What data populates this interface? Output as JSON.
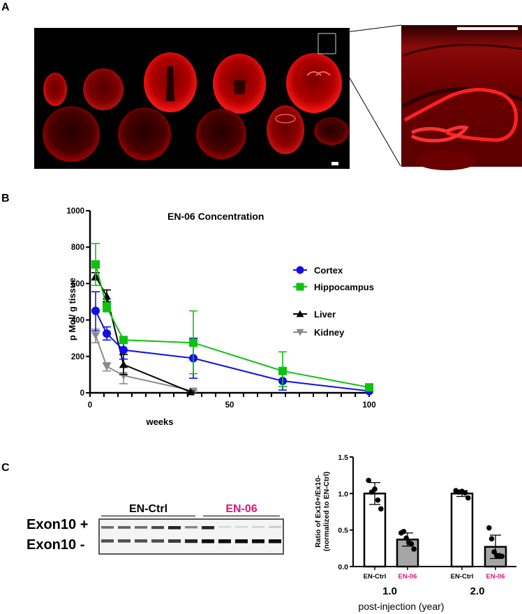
{
  "panels": {
    "a": {
      "label": "A"
    },
    "b": {
      "label": "B"
    },
    "c": {
      "label": "C"
    }
  },
  "colors": {
    "cortex": "#1010e8",
    "hippocampus": "#10c010",
    "liver": "#000000",
    "kidney": "#8a8a8a",
    "en06_accent": "#e0147a",
    "bar_en06_fill": "#a6a6a6",
    "fluorescence": "#ff1a1a"
  },
  "panel_a": {
    "description": "Fluorescent coronal brain sections (red) with magnified hippocampus inset",
    "sections_row1": 5,
    "sections_row2": 5,
    "scalebar_main": "scale-bar",
    "scalebar_inset": "scale-bar"
  },
  "panel_c_blot": {
    "group_ctrl": "EN-Ctrl",
    "group_en06": "EN-06",
    "band_top_label": "Exon10 +",
    "band_bottom_label": "Exon10 -",
    "lanes": 11,
    "ctrl_lanes": 6,
    "en06_lanes": 5
  },
  "chart_data": [
    {
      "type": "line",
      "title": "EN-06 Concentration",
      "xlabel": "weeks",
      "ylabel": "p Mol/ g tissue",
      "xlim": [
        0,
        100
      ],
      "ylim": [
        0,
        1000
      ],
      "xticks": [
        0,
        50,
        100
      ],
      "yticks": [
        0,
        200,
        400,
        600,
        800,
        1000
      ],
      "grid": false,
      "legend_position": "right",
      "series": [
        {
          "name": "Cortex",
          "marker": "circle",
          "color": "#1010e8",
          "x": [
            2,
            6,
            12,
            37,
            69,
            100
          ],
          "y": [
            450,
            325,
            235,
            190,
            65,
            10
          ],
          "err_low": [
            340,
            290,
            185,
            80,
            15,
            5
          ],
          "err_high": [
            555,
            362,
            285,
            300,
            110,
            15
          ]
        },
        {
          "name": "Hippocampus",
          "marker": "square",
          "color": "#10c010",
          "x": [
            2,
            6,
            12,
            37,
            69,
            100
          ],
          "y": [
            705,
            470,
            290,
            275,
            120,
            30
          ],
          "err_low": [
            590,
            445,
            285,
            105,
            35,
            25
          ],
          "err_high": [
            820,
            495,
            295,
            450,
            225,
            35
          ]
        },
        {
          "name": "Liver",
          "marker": "triangle-up",
          "color": "#000000",
          "x": [
            2,
            6,
            12,
            36
          ],
          "y": [
            640,
            530,
            155,
            5
          ],
          "err_low": [
            620,
            500,
            100,
            0
          ],
          "err_high": [
            660,
            565,
            210,
            10
          ]
        },
        {
          "name": "Kidney",
          "marker": "triangle-down",
          "color": "#8a8a8a",
          "x": [
            2,
            6,
            12,
            37
          ],
          "y": [
            315,
            145,
            95,
            10
          ],
          "err_low": [
            275,
            120,
            50,
            5
          ],
          "err_high": [
            350,
            165,
            140,
            15
          ]
        }
      ]
    },
    {
      "type": "bar",
      "title": "",
      "ylabel": "Ratio of Ex10+/Ex10- (normalized to EN-Ctrl)",
      "ylabel_line1": "Ratio of Ex10+/Ex10-",
      "ylabel_line2": "(normalized to EN-Ctrl)",
      "xlabel": "post-injection (year)",
      "ylim": [
        0,
        1.5
      ],
      "yticks": [
        "0.0",
        "0.5",
        "1.0",
        "1.5"
      ],
      "groups": [
        "1.0",
        "2.0"
      ],
      "categories": [
        "EN-Ctrl",
        "EN-06"
      ],
      "series": [
        {
          "group": "1.0",
          "category": "EN-Ctrl",
          "value": 1.0,
          "sd": 0.15,
          "points": [
            1.18,
            1.02,
            1.06,
            0.91,
            0.79
          ]
        },
        {
          "group": "1.0",
          "category": "EN-06",
          "value": 0.37,
          "sd": 0.09,
          "points": [
            0.46,
            0.48,
            0.39,
            0.33,
            0.31,
            0.24
          ]
        },
        {
          "group": "2.0",
          "category": "EN-Ctrl",
          "value": 1.0,
          "sd": 0.04,
          "points": [
            1.04,
            1.02,
            1.03,
            1.01,
            0.94
          ]
        },
        {
          "group": "2.0",
          "category": "EN-06",
          "value": 0.27,
          "sd": 0.16,
          "points": [
            0.53,
            0.38,
            0.2,
            0.15,
            0.15,
            0.14
          ]
        }
      ]
    }
  ]
}
